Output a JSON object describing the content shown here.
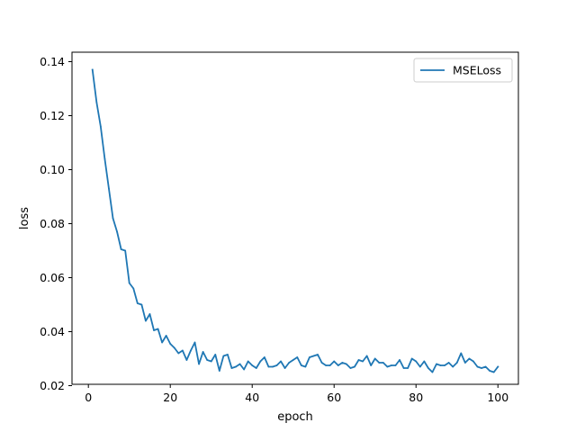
{
  "chart_data": {
    "type": "line",
    "xlabel": "epoch",
    "ylabel": "loss",
    "xlim": [
      -4.0,
      105.0
    ],
    "ylim": [
      0.0205,
      0.1435
    ],
    "xticks": [
      0,
      20,
      40,
      60,
      80,
      100
    ],
    "yticks": [
      0.02,
      0.04,
      0.06,
      0.08,
      0.1,
      0.12,
      0.14
    ],
    "xtick_labels": [
      "0",
      "20",
      "40",
      "60",
      "80",
      "100"
    ],
    "ytick_labels": [
      "0.02",
      "0.04",
      "0.06",
      "0.08",
      "0.10",
      "0.12",
      "0.14"
    ],
    "grid": false,
    "legend_position": "top-right",
    "series": [
      {
        "name": "MSELoss",
        "color": "#1f77b4",
        "x": [
          1,
          2,
          3,
          4,
          5,
          6,
          7,
          8,
          9,
          10,
          11,
          12,
          13,
          14,
          15,
          16,
          17,
          18,
          19,
          20,
          21,
          22,
          23,
          24,
          25,
          26,
          27,
          28,
          29,
          30,
          31,
          32,
          33,
          34,
          35,
          36,
          37,
          38,
          39,
          40,
          41,
          42,
          43,
          44,
          45,
          46,
          47,
          48,
          49,
          50,
          51,
          52,
          53,
          54,
          55,
          56,
          57,
          58,
          59,
          60,
          61,
          62,
          63,
          64,
          65,
          66,
          67,
          68,
          69,
          70,
          71,
          72,
          73,
          74,
          75,
          76,
          77,
          78,
          79,
          80,
          81,
          82,
          83,
          84,
          85,
          86,
          87,
          88,
          89,
          90,
          91,
          92,
          93,
          94,
          95,
          96,
          97,
          98,
          99,
          100
        ],
        "y": [
          0.137,
          0.125,
          0.116,
          0.104,
          0.093,
          0.082,
          0.077,
          0.0705,
          0.07,
          0.058,
          0.056,
          0.0505,
          0.05,
          0.044,
          0.0465,
          0.0405,
          0.041,
          0.036,
          0.0385,
          0.0355,
          0.034,
          0.032,
          0.033,
          0.0295,
          0.033,
          0.036,
          0.028,
          0.0325,
          0.0295,
          0.029,
          0.0315,
          0.0255,
          0.031,
          0.0315,
          0.0265,
          0.027,
          0.028,
          0.026,
          0.029,
          0.0275,
          0.0265,
          0.029,
          0.0305,
          0.027,
          0.027,
          0.0275,
          0.029,
          0.0265,
          0.0285,
          0.0295,
          0.0305,
          0.0275,
          0.027,
          0.0305,
          0.031,
          0.0315,
          0.0285,
          0.0275,
          0.0275,
          0.029,
          0.0275,
          0.0285,
          0.028,
          0.0265,
          0.027,
          0.0295,
          0.029,
          0.031,
          0.0275,
          0.03,
          0.0285,
          0.0285,
          0.027,
          0.0275,
          0.0275,
          0.0295,
          0.0265,
          0.0265,
          0.03,
          0.029,
          0.027,
          0.029,
          0.0265,
          0.025,
          0.028,
          0.0275,
          0.0275,
          0.0285,
          0.027,
          0.0285,
          0.032,
          0.0285,
          0.03,
          0.029,
          0.027,
          0.0265,
          0.027,
          0.0255,
          0.025,
          0.027
        ]
      }
    ]
  }
}
